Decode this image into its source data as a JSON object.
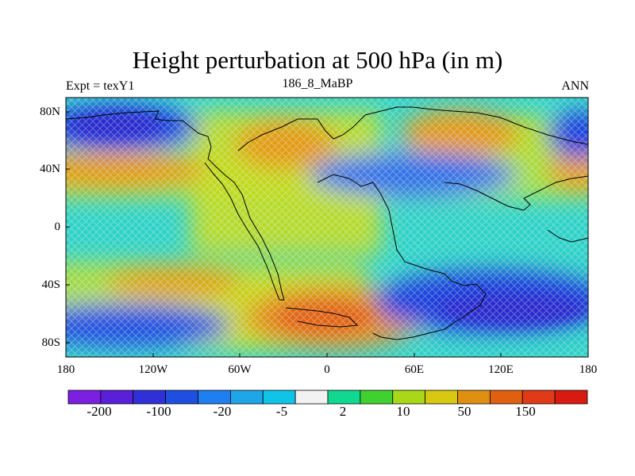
{
  "title": "Height perturbation at 500 hPa (in m)",
  "left_string": "Expt = texY1",
  "center_string": "186_8_MaBP",
  "right_string": "ANN",
  "lat_ticks": [
    "80N",
    "40N",
    "0",
    "40S",
    "80S"
  ],
  "lon_ticks": [
    "180",
    "120W",
    "60W",
    "0",
    "60E",
    "120E",
    "180"
  ],
  "colorbar": {
    "colors": [
      "#7b1fe0",
      "#5a1fd8",
      "#3030d8",
      "#1f4fe0",
      "#1f7ff0",
      "#1fa6e8",
      "#10c4e8",
      "#f2f2f2",
      "#10d890",
      "#40d030",
      "#a8d818",
      "#d8c810",
      "#e09010",
      "#e06010",
      "#e03a18",
      "#d81a10"
    ],
    "labels": [
      "-200",
      "-100",
      "-20",
      "-5",
      "2",
      "10",
      "50",
      "150"
    ]
  }
}
